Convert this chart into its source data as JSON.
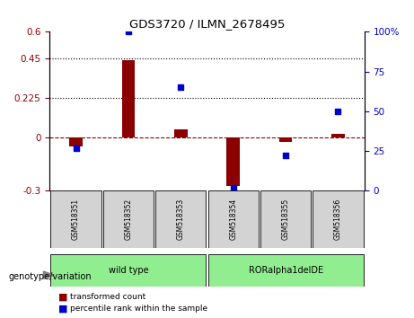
{
  "title": "GDS3720 / ILMN_2678495",
  "samples": [
    "GSM518351",
    "GSM518352",
    "GSM518353",
    "GSM518354",
    "GSM518355",
    "GSM518356"
  ],
  "transformed_count": [
    -0.05,
    0.44,
    0.05,
    -0.27,
    -0.025,
    0.02
  ],
  "percentile_rank": [
    27,
    100,
    65,
    2,
    22,
    50
  ],
  "groups": [
    {
      "label": "wild type",
      "samples": [
        0,
        1,
        2
      ],
      "color": "#90EE90"
    },
    {
      "label": "RORalpha1delDE",
      "samples": [
        3,
        4,
        5
      ],
      "color": "#90EE90"
    }
  ],
  "group_label_prefix": "genotype/variation",
  "bar_color": "#8B0000",
  "dot_color": "#0000CD",
  "left_ylim": [
    -0.3,
    0.6
  ],
  "left_yticks": [
    -0.3,
    0,
    0.225,
    0.45,
    0.6
  ],
  "left_ytick_labels": [
    "-0.3",
    "0",
    "0.225",
    "0.45",
    "0.6"
  ],
  "right_ylim": [
    0,
    100
  ],
  "right_yticks": [
    0,
    25,
    50,
    75,
    100
  ],
  "right_ytick_labels": [
    "0",
    "25",
    "50",
    "75",
    "100%"
  ],
  "hlines": [
    0.225,
    0.45
  ],
  "zero_line_y": 0,
  "legend_items": [
    {
      "label": "transformed count",
      "color": "#8B0000",
      "marker": "s"
    },
    {
      "label": "percentile rank within the sample",
      "color": "#0000CD",
      "marker": "s"
    }
  ],
  "background_color": "#ffffff",
  "plot_bg_color": "#ffffff",
  "tick_area_color": "#d3d3d3"
}
